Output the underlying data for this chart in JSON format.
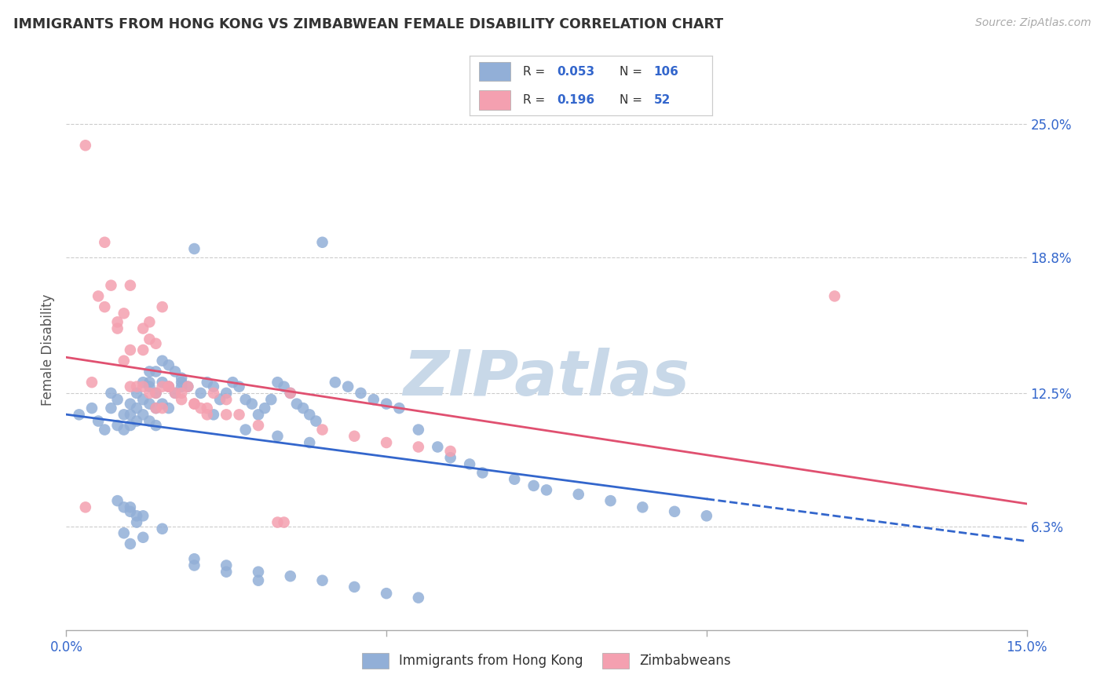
{
  "title": "IMMIGRANTS FROM HONG KONG VS ZIMBABWEAN FEMALE DISABILITY CORRELATION CHART",
  "source": "Source: ZipAtlas.com",
  "ylabel": "Female Disability",
  "yticks_labels": [
    "25.0%",
    "18.8%",
    "12.5%",
    "6.3%"
  ],
  "ytick_vals": [
    0.25,
    0.188,
    0.125,
    0.063
  ],
  "xmin": 0.0,
  "xmax": 0.15,
  "ymin": 0.015,
  "ymax": 0.275,
  "hk_color": "#92afd7",
  "zim_color": "#f4a0b0",
  "hk_line_color": "#3366cc",
  "zim_line_color": "#e05070",
  "background_color": "#ffffff",
  "watermark_color": "#c8d8e8",
  "hk_scatter_x": [
    0.002,
    0.004,
    0.005,
    0.006,
    0.007,
    0.007,
    0.008,
    0.008,
    0.009,
    0.009,
    0.01,
    0.01,
    0.01,
    0.011,
    0.011,
    0.011,
    0.012,
    0.012,
    0.012,
    0.013,
    0.013,
    0.013,
    0.014,
    0.014,
    0.014,
    0.015,
    0.015,
    0.016,
    0.016,
    0.017,
    0.018,
    0.019,
    0.02,
    0.021,
    0.022,
    0.023,
    0.024,
    0.025,
    0.026,
    0.027,
    0.028,
    0.029,
    0.03,
    0.031,
    0.032,
    0.033,
    0.034,
    0.035,
    0.036,
    0.037,
    0.038,
    0.039,
    0.04,
    0.042,
    0.044,
    0.046,
    0.048,
    0.05,
    0.052,
    0.055,
    0.058,
    0.06,
    0.063,
    0.065,
    0.07,
    0.073,
    0.075,
    0.08,
    0.085,
    0.09,
    0.095,
    0.1,
    0.009,
    0.01,
    0.011,
    0.012,
    0.013,
    0.014,
    0.015,
    0.016,
    0.017,
    0.018,
    0.02,
    0.025,
    0.03,
    0.035,
    0.04,
    0.045,
    0.05,
    0.055,
    0.013,
    0.018,
    0.023,
    0.028,
    0.033,
    0.038,
    0.01,
    0.012,
    0.015,
    0.02,
    0.025,
    0.03,
    0.008,
    0.009,
    0.01,
    0.011
  ],
  "hk_scatter_y": [
    0.115,
    0.118,
    0.112,
    0.108,
    0.125,
    0.118,
    0.122,
    0.11,
    0.115,
    0.108,
    0.12,
    0.115,
    0.11,
    0.125,
    0.118,
    0.112,
    0.13,
    0.122,
    0.115,
    0.128,
    0.12,
    0.112,
    0.125,
    0.118,
    0.11,
    0.13,
    0.12,
    0.128,
    0.118,
    0.125,
    0.13,
    0.128,
    0.192,
    0.125,
    0.13,
    0.128,
    0.122,
    0.125,
    0.13,
    0.128,
    0.122,
    0.12,
    0.115,
    0.118,
    0.122,
    0.13,
    0.128,
    0.125,
    0.12,
    0.118,
    0.115,
    0.112,
    0.195,
    0.13,
    0.128,
    0.125,
    0.122,
    0.12,
    0.118,
    0.108,
    0.1,
    0.095,
    0.092,
    0.088,
    0.085,
    0.082,
    0.08,
    0.078,
    0.075,
    0.072,
    0.07,
    0.068,
    0.06,
    0.072,
    0.065,
    0.068,
    0.135,
    0.135,
    0.14,
    0.138,
    0.135,
    0.132,
    0.045,
    0.045,
    0.042,
    0.04,
    0.038,
    0.035,
    0.032,
    0.03,
    0.13,
    0.128,
    0.115,
    0.108,
    0.105,
    0.102,
    0.055,
    0.058,
    0.062,
    0.048,
    0.042,
    0.038,
    0.075,
    0.072,
    0.07,
    0.068
  ],
  "zim_scatter_x": [
    0.003,
    0.005,
    0.006,
    0.007,
    0.008,
    0.009,
    0.01,
    0.01,
    0.011,
    0.012,
    0.012,
    0.013,
    0.013,
    0.014,
    0.014,
    0.015,
    0.015,
    0.016,
    0.017,
    0.018,
    0.019,
    0.02,
    0.021,
    0.022,
    0.023,
    0.025,
    0.027,
    0.03,
    0.033,
    0.034,
    0.035,
    0.04,
    0.045,
    0.05,
    0.055,
    0.06,
    0.004,
    0.006,
    0.008,
    0.009,
    0.01,
    0.012,
    0.013,
    0.014,
    0.015,
    0.016,
    0.018,
    0.02,
    0.022,
    0.025,
    0.12,
    0.003
  ],
  "zim_scatter_y": [
    0.24,
    0.17,
    0.165,
    0.175,
    0.155,
    0.162,
    0.128,
    0.175,
    0.128,
    0.128,
    0.155,
    0.125,
    0.158,
    0.125,
    0.118,
    0.128,
    0.118,
    0.128,
    0.125,
    0.122,
    0.128,
    0.12,
    0.118,
    0.115,
    0.125,
    0.122,
    0.115,
    0.11,
    0.065,
    0.065,
    0.125,
    0.108,
    0.105,
    0.102,
    0.1,
    0.098,
    0.13,
    0.195,
    0.158,
    0.14,
    0.145,
    0.145,
    0.15,
    0.148,
    0.165,
    0.128,
    0.125,
    0.12,
    0.118,
    0.115,
    0.17,
    0.072
  ]
}
